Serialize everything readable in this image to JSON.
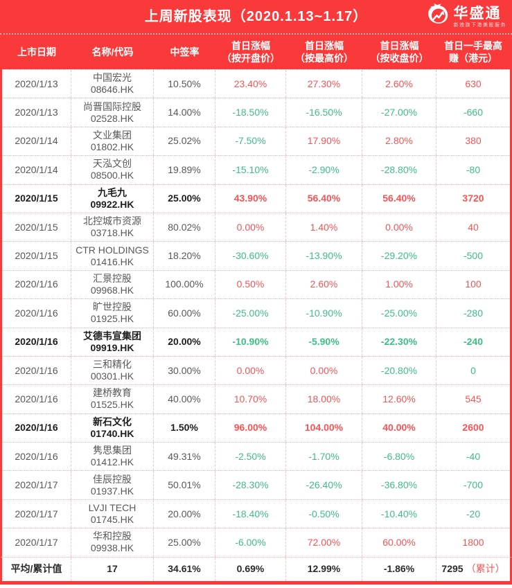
{
  "header": {
    "title": "上周新股表现（2020.1.13~1.17）",
    "logo": {
      "text": "华盛通",
      "tagline": "新浪旗下港美股服务",
      "icon": "flame-arrow-icon"
    }
  },
  "colors": {
    "brand_red": "#fa3a3a",
    "up_red": "#f85355",
    "down_green": "#3ebd85",
    "text_dark": "#585858",
    "bold_text": "#1d1d1d",
    "grid_pink": "#eec6c6"
  },
  "table": {
    "columns": [
      "上市日期",
      "名称/代码",
      "中签率",
      "首日涨幅\n（按开盘价）",
      "首日涨幅\n（按最高价）",
      "首日涨幅\n（按收盘价）",
      "首日一手最高\n赚（港元）"
    ],
    "rows": [
      {
        "date": "2020/1/13",
        "name": "中国宏光",
        "code": "08646.HK",
        "lottery": "10.50%",
        "open": {
          "v": "23.40%",
          "c": "up"
        },
        "high": {
          "v": "27.30%",
          "c": "up"
        },
        "close": {
          "v": "2.60%",
          "c": "up"
        },
        "profit": {
          "v": "630",
          "c": "up"
        },
        "bold": false
      },
      {
        "date": "2020/1/13",
        "name": "尚晋国际控股",
        "code": "02528.HK",
        "lottery": "14.00%",
        "open": {
          "v": "-18.50%",
          "c": "down"
        },
        "high": {
          "v": "-16.50%",
          "c": "down"
        },
        "close": {
          "v": "-27.00%",
          "c": "down"
        },
        "profit": {
          "v": "-660",
          "c": "down"
        },
        "bold": false
      },
      {
        "date": "2020/1/14",
        "name": "文业集团",
        "code": "01802.HK",
        "lottery": "25.02%",
        "open": {
          "v": "-7.50%",
          "c": "down"
        },
        "high": {
          "v": "17.90%",
          "c": "up"
        },
        "close": {
          "v": "2.80%",
          "c": "up"
        },
        "profit": {
          "v": "380",
          "c": "up"
        },
        "bold": false
      },
      {
        "date": "2020/1/14",
        "name": "天泓文创",
        "code": "08500.HK",
        "lottery": "19.89%",
        "open": {
          "v": "-15.10%",
          "c": "down"
        },
        "high": {
          "v": "-2.90%",
          "c": "down"
        },
        "close": {
          "v": "-28.80%",
          "c": "down"
        },
        "profit": {
          "v": "-80",
          "c": "down"
        },
        "bold": false
      },
      {
        "date": "2020/1/15",
        "name": "九毛九",
        "code": "09922.HK",
        "lottery": "25.00%",
        "open": {
          "v": "43.90%",
          "c": "up"
        },
        "high": {
          "v": "56.40%",
          "c": "up"
        },
        "close": {
          "v": "56.40%",
          "c": "up"
        },
        "profit": {
          "v": "3720",
          "c": "up"
        },
        "bold": true
      },
      {
        "date": "2020/1/15",
        "name": "北控城市资源",
        "code": "03718.HK",
        "lottery": "80.02%",
        "open": {
          "v": "0.00%",
          "c": "up"
        },
        "high": {
          "v": "1.40%",
          "c": "up"
        },
        "close": {
          "v": "0.00%",
          "c": "up"
        },
        "profit": {
          "v": "40",
          "c": "up"
        },
        "bold": false
      },
      {
        "date": "2020/1/15",
        "name": "CTR HOLDINGS",
        "code": "01416.HK",
        "lottery": "18.20%",
        "open": {
          "v": "-30.60%",
          "c": "down"
        },
        "high": {
          "v": "-13.90%",
          "c": "down"
        },
        "close": {
          "v": "-29.20%",
          "c": "down"
        },
        "profit": {
          "v": "-500",
          "c": "down"
        },
        "bold": false
      },
      {
        "date": "2020/1/16",
        "name": "汇景控股",
        "code": "09968.HK",
        "lottery": "100.00%",
        "open": {
          "v": "0.50%",
          "c": "up"
        },
        "high": {
          "v": "2.60%",
          "c": "up"
        },
        "close": {
          "v": "1.00%",
          "c": "up"
        },
        "profit": {
          "v": "100",
          "c": "up"
        },
        "bold": false
      },
      {
        "date": "2020/1/16",
        "name": "旷世控股",
        "code": "01925.HK",
        "lottery": "60.00%",
        "open": {
          "v": "-25.00%",
          "c": "down"
        },
        "high": {
          "v": "-10.90%",
          "c": "down"
        },
        "close": {
          "v": "-25.00%",
          "c": "down"
        },
        "profit": {
          "v": "-280",
          "c": "down"
        },
        "bold": false
      },
      {
        "date": "2020/1/16",
        "name": "艾德韦宣集团",
        "code": "09919.HK",
        "lottery": "20.00%",
        "open": {
          "v": "-10.90%",
          "c": "down"
        },
        "high": {
          "v": "-5.90%",
          "c": "down"
        },
        "close": {
          "v": "-22.30%",
          "c": "down"
        },
        "profit": {
          "v": "-240",
          "c": "down"
        },
        "bold": true
      },
      {
        "date": "2020/1/16",
        "name": "三和精化",
        "code": "00301.HK",
        "lottery": "30.00%",
        "open": {
          "v": "0.00%",
          "c": "up"
        },
        "high": {
          "v": "0.00%",
          "c": "up"
        },
        "close": {
          "v": "-20.80%",
          "c": "down"
        },
        "profit": {
          "v": "0",
          "c": "down"
        },
        "bold": false
      },
      {
        "date": "2020/1/16",
        "name": "建桥教育",
        "code": "01525.HK",
        "lottery": "40.00%",
        "open": {
          "v": "10.70%",
          "c": "up"
        },
        "high": {
          "v": "18.00%",
          "c": "up"
        },
        "close": {
          "v": "12.60%",
          "c": "up"
        },
        "profit": {
          "v": "545",
          "c": "up"
        },
        "bold": false
      },
      {
        "date": "2020/1/16",
        "name": "新石文化",
        "code": "01740.HK",
        "lottery": "1.50%",
        "open": {
          "v": "96.00%",
          "c": "up"
        },
        "high": {
          "v": "104.00%",
          "c": "up"
        },
        "close": {
          "v": "40.00%",
          "c": "up"
        },
        "profit": {
          "v": "2600",
          "c": "up"
        },
        "bold": true
      },
      {
        "date": "2020/1/16",
        "name": "隽思集团",
        "code": "01412.HK",
        "lottery": "49.31%",
        "open": {
          "v": "-2.50%",
          "c": "down"
        },
        "high": {
          "v": "-1.70%",
          "c": "down"
        },
        "close": {
          "v": "-6.80%",
          "c": "down"
        },
        "profit": {
          "v": "-40",
          "c": "down"
        },
        "bold": false
      },
      {
        "date": "2020/1/17",
        "name": "佳辰控股",
        "code": "01937.HK",
        "lottery": "50.01%",
        "open": {
          "v": "-28.30%",
          "c": "down"
        },
        "high": {
          "v": "-26.40%",
          "c": "down"
        },
        "close": {
          "v": "-36.80%",
          "c": "down"
        },
        "profit": {
          "v": "-700",
          "c": "down"
        },
        "bold": false
      },
      {
        "date": "2020/1/17",
        "name": "LVJI TECH",
        "code": "01745.HK",
        "lottery": "20.00%",
        "open": {
          "v": "-18.40%",
          "c": "down"
        },
        "high": {
          "v": "-0.50%",
          "c": "down"
        },
        "close": {
          "v": "-10.40%",
          "c": "down"
        },
        "profit": {
          "v": "-20",
          "c": "down"
        },
        "bold": false
      },
      {
        "date": "2020/1/17",
        "name": "华和控股",
        "code": "09938.HK",
        "lottery": "25.00%",
        "open": {
          "v": "-6.00%",
          "c": "down"
        },
        "high": {
          "v": "72.00%",
          "c": "up"
        },
        "close": {
          "v": "60.00%",
          "c": "up"
        },
        "profit": {
          "v": "1800",
          "c": "up"
        },
        "bold": false
      }
    ],
    "footer": {
      "label": "平均/累计值",
      "count": "17",
      "lottery": "34.61%",
      "open": "0.69%",
      "high": "12.99%",
      "close": "-1.86%",
      "profit": "7295",
      "profit_suffix": "（累计）"
    }
  },
  "chart_data": {
    "type": "table",
    "title": "上周新股表现（2020.1.13~1.17）",
    "columns": [
      "上市日期",
      "名称/代码",
      "中签率",
      "首日涨幅（按开盘价）",
      "首日涨幅（按最高价）",
      "首日涨幅（按收盘价）",
      "首日一手最高赚（港元）"
    ],
    "rows": [
      [
        "2020/1/13",
        "中国宏光 08646.HK",
        "10.50%",
        "23.40%",
        "27.30%",
        "2.60%",
        "630"
      ],
      [
        "2020/1/13",
        "尚晋国际控股 02528.HK",
        "14.00%",
        "-18.50%",
        "-16.50%",
        "-27.00%",
        "-660"
      ],
      [
        "2020/1/14",
        "文业集团 01802.HK",
        "25.02%",
        "-7.50%",
        "17.90%",
        "2.80%",
        "380"
      ],
      [
        "2020/1/14",
        "天泓文创 08500.HK",
        "19.89%",
        "-15.10%",
        "-2.90%",
        "-28.80%",
        "-80"
      ],
      [
        "2020/1/15",
        "九毛九 09922.HK",
        "25.00%",
        "43.90%",
        "56.40%",
        "56.40%",
        "3720"
      ],
      [
        "2020/1/15",
        "北控城市资源 03718.HK",
        "80.02%",
        "0.00%",
        "1.40%",
        "0.00%",
        "40"
      ],
      [
        "2020/1/15",
        "CTR HOLDINGS 01416.HK",
        "18.20%",
        "-30.60%",
        "-13.90%",
        "-29.20%",
        "-500"
      ],
      [
        "2020/1/16",
        "汇景控股 09968.HK",
        "100.00%",
        "0.50%",
        "2.60%",
        "1.00%",
        "100"
      ],
      [
        "2020/1/16",
        "旷世控股 01925.HK",
        "60.00%",
        "-25.00%",
        "-10.90%",
        "-25.00%",
        "-280"
      ],
      [
        "2020/1/16",
        "艾德韦宣集团 09919.HK",
        "20.00%",
        "-10.90%",
        "-5.90%",
        "-22.30%",
        "-240"
      ],
      [
        "2020/1/16",
        "三和精化 00301.HK",
        "30.00%",
        "0.00%",
        "0.00%",
        "-20.80%",
        "0"
      ],
      [
        "2020/1/16",
        "建桥教育 01525.HK",
        "40.00%",
        "10.70%",
        "18.00%",
        "12.60%",
        "545"
      ],
      [
        "2020/1/16",
        "新石文化 01740.HK",
        "1.50%",
        "96.00%",
        "104.00%",
        "40.00%",
        "2600"
      ],
      [
        "2020/1/16",
        "隽思集团 01412.HK",
        "49.31%",
        "-2.50%",
        "-1.70%",
        "-6.80%",
        "-40"
      ],
      [
        "2020/1/17",
        "佳辰控股 01937.HK",
        "50.01%",
        "-28.30%",
        "-26.40%",
        "-36.80%",
        "-700"
      ],
      [
        "2020/1/17",
        "LVJI TECH 01745.HK",
        "20.00%",
        "-18.40%",
        "-0.50%",
        "-10.40%",
        "-20"
      ],
      [
        "2020/1/17",
        "华和控股 09938.HK",
        "25.00%",
        "-6.00%",
        "72.00%",
        "60.00%",
        "1800"
      ],
      [
        "平均/累计值",
        "17",
        "34.61%",
        "0.69%",
        "12.99%",
        "-1.86%",
        "7295（累计）"
      ]
    ],
    "highlighted_rows": [
      "九毛九 09922.HK",
      "艾德韦宣集团 09919.HK",
      "新石文化 01740.HK"
    ]
  }
}
